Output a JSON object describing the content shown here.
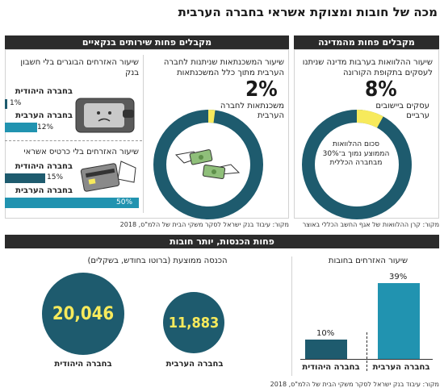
{
  "title": "מכה של חובות ומצוקת אשראי בחברה הערבית",
  "sections": {
    "state_header": "מקבלים פחות מהמדינה",
    "bank_header": "מקבלים פחות שירותים בנקאיים",
    "income_header": "פחות הכנסות, יותר חובות"
  },
  "state": {
    "desc": "שיעור ההלוואות בערבות מדינה שניתנו לעסקים בתקופת הקורונה",
    "percent": "8%",
    "sub": "עסקים ביישובים ערביים",
    "inner": "סכום ההלוואות הממוצע נמוך ב־30% מבחברה הכללית",
    "source": "מקור: קרן ההלוואות של אגף החשב הכללי באוצר"
  },
  "mortgage": {
    "desc": "שיעור המשכנתאות שניתנות לחברה הערבית מתוך כלל המשכנתאות",
    "percent": "2%",
    "sub": "משכנתאות לחברה הערבית"
  },
  "bank_account": {
    "desc": "שיעור האזרחים הבוגרים בלי חשבון בנק",
    "jewish_label": "בחברה היהודית",
    "jewish_value": "1%",
    "arab_label": "בחברה הערבית",
    "arab_value": "12%"
  },
  "credit_card": {
    "desc": "שיעור האזרחים בלי כרטיס אשראי",
    "jewish_label": "בחברה היהודית",
    "jewish_value": "15%",
    "arab_label": "בחברה הערבית",
    "arab_value": "50%"
  },
  "bank_source": "מקור: עיבוד בנק ישראל לסקר משקי הבית של הלמ\"ס, 2018",
  "debt": {
    "desc": "שיעור האזרחים בחובות",
    "arab_label": "בחברה הערבית",
    "arab_value": "39%",
    "jewish_label": "בחברה היהודית",
    "jewish_value": "10%"
  },
  "income": {
    "desc": "הכנסה ממוצעת (ברוטו בחודש, בשקלים)",
    "arab_value": "11,883",
    "arab_label": "בחברה הערבית",
    "jewish_value": "20,046",
    "jewish_label": "בחברה היהודית"
  },
  "bottom_source": "מקור: עיבוד בנק ישראל לסקר משקי הבית של הלמ\"ס, 2018",
  "colors": {
    "dark_teal": "#1e5b6e",
    "light_teal": "#2193b0",
    "highlight": "#f7ea5c",
    "header_bg": "#2b2b2b"
  },
  "chart_data": [
    {
      "type": "pie",
      "title": "שיעור ההלוואות בערבות מדינה שניתנו לעסקים בתקופת הקורונה",
      "categories": [
        "עסקים ביישובים ערביים",
        ""
      ],
      "values": [
        8,
        92
      ]
    },
    {
      "type": "pie",
      "title": "שיעור המשכנתאות שניתנות לחברה הערבית מתוך כלל המשכנתאות",
      "categories": [
        "משכנתאות לחברה הערבית",
        ""
      ],
      "values": [
        2,
        98
      ]
    },
    {
      "type": "bar",
      "title": "שיעור האזרחים הבוגרים בלי חשבון בנק",
      "categories": [
        "בחברה היהודית",
        "בחברה הערבית"
      ],
      "values": [
        1,
        12
      ]
    },
    {
      "type": "bar",
      "title": "שיעור האזרחים בלי כרטיס אשראי",
      "categories": [
        "בחברה היהודית",
        "בחברה הערבית"
      ],
      "values": [
        15,
        50
      ]
    },
    {
      "type": "bar",
      "title": "שיעור האזרחים בחובות",
      "categories": [
        "בחברה הערבית",
        "בחברה היהודית"
      ],
      "values": [
        39,
        10
      ]
    },
    {
      "type": "bar",
      "title": "הכנסה ממוצעת (ברוטו בחודש, בשקלים)",
      "categories": [
        "בחברה הערבית",
        "בחברה היהודית"
      ],
      "values": [
        11883,
        20046
      ]
    }
  ]
}
